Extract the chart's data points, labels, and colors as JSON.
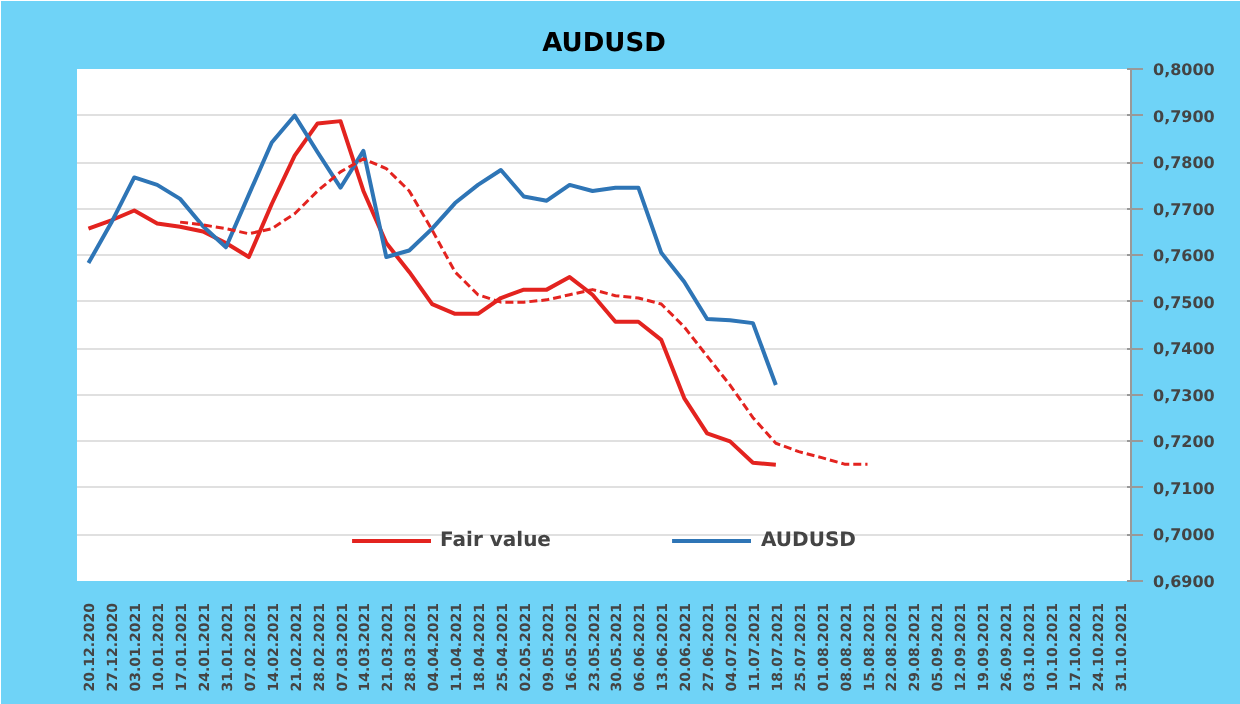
{
  "chart_data": {
    "type": "line",
    "title": "AUDUSD",
    "categories": [
      "20.12.2020",
      "27.12.2020",
      "03.01.2021",
      "10.01.2021",
      "17.01.2021",
      "24.01.2021",
      "31.01.2021",
      "07.02.2021",
      "14.02.2021",
      "21.02.2021",
      "28.02.2021",
      "07.03.2021",
      "14.03.2021",
      "21.03.2021",
      "28.03.2021",
      "04.04.2021",
      "11.04.2021",
      "18.04.2021",
      "25.04.2021",
      "02.05.2021",
      "09.05.2021",
      "16.05.2021",
      "23.05.2021",
      "30.05.2021",
      "06.06.2021",
      "13.06.2021",
      "20.06.2021",
      "27.06.2021",
      "04.07.2021",
      "11.07.2021",
      "18.07.2021",
      "25.07.2021",
      "01.08.2021",
      "08.08.2021",
      "15.08.2021",
      "22.08.2021",
      "29.08.2021",
      "05.09.2021",
      "12.09.2021",
      "19.09.2021",
      "26.09.2021",
      "03.10.2021",
      "10.10.2021",
      "17.10.2021",
      "24.10.2021",
      "31.10.2021"
    ],
    "series": [
      {
        "name": "Fair value",
        "color": "#e3231f",
        "line_style": "solid",
        "values": [
          0.7657,
          0.7675,
          0.7696,
          0.7668,
          0.7661,
          0.7651,
          0.7626,
          0.7596,
          0.771,
          0.7814,
          0.7883,
          0.7888,
          0.7738,
          0.7626,
          0.7564,
          0.7495,
          0.7474,
          0.7474,
          0.7508,
          0.7526,
          0.7526,
          0.7553,
          0.7515,
          0.7457,
          0.7457,
          0.7418,
          0.7293,
          0.7217,
          0.72,
          0.7154,
          0.715,
          null,
          null,
          null,
          null,
          null,
          null,
          null,
          null,
          null,
          null,
          null,
          null,
          null,
          null,
          null
        ]
      },
      {
        "name": "AUDUSD",
        "color": "#2e75b6",
        "line_style": "solid",
        "values": [
          0.7583,
          0.767,
          0.7767,
          0.7751,
          0.7721,
          0.7662,
          0.7617,
          0.773,
          0.7842,
          0.79,
          0.7821,
          0.7745,
          0.7824,
          0.7596,
          0.761,
          0.7657,
          0.7712,
          0.7751,
          0.7783,
          0.7726,
          0.7717,
          0.7751,
          0.7738,
          0.7745,
          0.7745,
          0.7605,
          0.7543,
          0.7463,
          0.746,
          0.7454,
          0.7321,
          null,
          null,
          null,
          null,
          null,
          null,
          null,
          null,
          null,
          null,
          null,
          null,
          null,
          null,
          null
        ]
      },
      {
        "color": "#e3231f",
        "line_style": "dashed",
        "values": [
          null,
          null,
          null,
          null,
          0.7671,
          0.7665,
          0.7657,
          0.7646,
          0.7657,
          0.7689,
          0.7738,
          0.7779,
          0.7807,
          0.7786,
          0.7738,
          0.7654,
          0.7564,
          0.7515,
          0.7499,
          0.7499,
          0.7504,
          0.7515,
          0.7526,
          0.7513,
          0.7508,
          0.7495,
          0.7446,
          0.7383,
          0.7321,
          0.7251,
          0.7196,
          0.7178,
          0.7165,
          0.7151,
          0.7151,
          null,
          null,
          null,
          null,
          null,
          null,
          null,
          null,
          null,
          null,
          null
        ]
      }
    ],
    "ylim": [
      0.69,
      0.8
    ],
    "yticks": [
      {
        "value": 0.69,
        "label": "0,6900"
      },
      {
        "value": 0.7,
        "label": "0,7000"
      },
      {
        "value": 0.71,
        "label": "0,7100"
      },
      {
        "value": 0.72,
        "label": "0,7200"
      },
      {
        "value": 0.73,
        "label": "0,7300"
      },
      {
        "value": 0.74,
        "label": "0,7400"
      },
      {
        "value": 0.75,
        "label": "0,7500"
      },
      {
        "value": 0.76,
        "label": "0,7600"
      },
      {
        "value": 0.77,
        "label": "0,7700"
      },
      {
        "value": 0.78,
        "label": "0,7800"
      },
      {
        "value": 0.79,
        "label": "0,7900"
      },
      {
        "value": 0.8,
        "label": "0,8000"
      }
    ],
    "grid": "y",
    "legend": "bottom"
  }
}
